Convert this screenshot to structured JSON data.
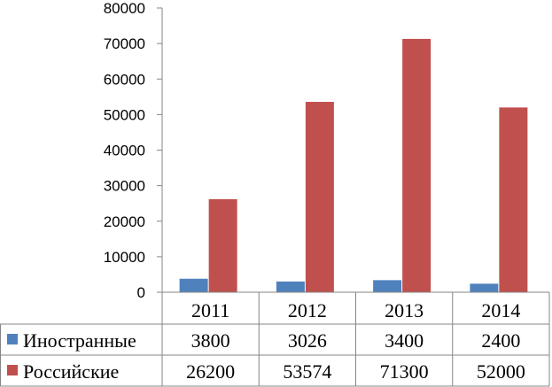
{
  "chart_data": {
    "type": "bar",
    "categories": [
      "2011",
      "2012",
      "2013",
      "2014"
    ],
    "series": [
      {
        "name": "Иностранные",
        "color": "#4f81bd",
        "values": [
          3800,
          3026,
          3400,
          2400
        ],
        "table_values": [
          "3800",
          "3026",
          "3400",
          "2400"
        ]
      },
      {
        "name": "Российские",
        "color": "#c0504d",
        "values": [
          26200,
          53574,
          71300,
          52000
        ],
        "table_values": [
          "26200",
          "53574",
          "71300",
          "52000"
        ]
      }
    ],
    "ylim": [
      0,
      80000
    ],
    "yticks": [
      "0",
      "10000",
      "20000",
      "30000",
      "40000",
      "50000",
      "60000",
      "70000",
      "80000"
    ],
    "grid": false,
    "data_table": true,
    "title": "",
    "xlabel": "",
    "ylabel": ""
  }
}
